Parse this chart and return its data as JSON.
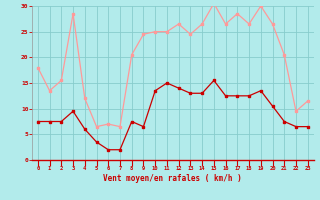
{
  "hours": [
    0,
    1,
    2,
    3,
    4,
    5,
    6,
    7,
    8,
    9,
    10,
    11,
    12,
    13,
    14,
    15,
    16,
    17,
    18,
    19,
    20,
    21,
    22,
    23
  ],
  "wind_avg": [
    7.5,
    7.5,
    7.5,
    9.5,
    6.0,
    3.5,
    2.0,
    2.0,
    7.5,
    6.5,
    13.5,
    15.0,
    14.0,
    13.0,
    13.0,
    15.5,
    12.5,
    12.5,
    12.5,
    13.5,
    10.5,
    7.5,
    6.5,
    6.5
  ],
  "wind_gust": [
    18.0,
    13.5,
    15.5,
    28.5,
    12.0,
    6.5,
    7.0,
    6.5,
    20.5,
    24.5,
    25.0,
    25.0,
    26.5,
    24.5,
    26.5,
    30.5,
    26.5,
    28.5,
    26.5,
    30.0,
    26.5,
    20.5,
    9.5,
    11.5
  ],
  "xlabel": "Vent moyen/en rafales ( km/h )",
  "ylim": [
    0,
    30
  ],
  "yticks": [
    0,
    5,
    10,
    15,
    20,
    25,
    30
  ],
  "bg_color": "#b2ebeb",
  "grid_color": "#88cccc",
  "line_avg_color": "#cc0000",
  "line_gust_color": "#ff9999",
  "tick_color": "#cc0000",
  "label_color": "#cc0000"
}
